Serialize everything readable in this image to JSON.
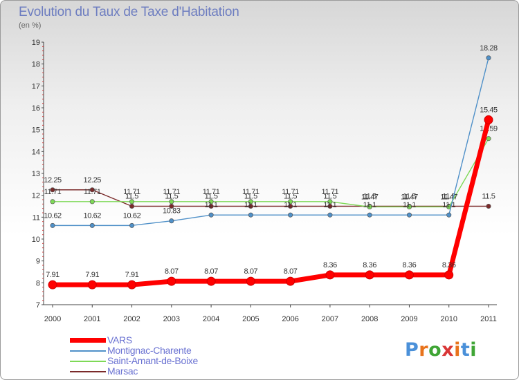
{
  "title": "Evolution du Taux de Taxe d'Habitation",
  "subtitle": "(en %)",
  "logo": {
    "text": "Proxiti",
    "letter_colors": [
      "#4a90d9",
      "#e8731c",
      "#3fa535",
      "#d93636",
      "#e8731c",
      "#4a90d9",
      "#3fa535"
    ]
  },
  "chart_data": {
    "type": "line",
    "x": [
      "2000",
      "2001",
      "2002",
      "2003",
      "2004",
      "2005",
      "2006",
      "2007",
      "2008",
      "2009",
      "2010",
      "2011"
    ],
    "ylim": [
      7,
      19
    ],
    "yticks": [
      "7",
      "8",
      "9",
      "10",
      "11",
      "12",
      "13",
      "14",
      "15",
      "16",
      "17",
      "18",
      "19"
    ],
    "grid": false,
    "legend_position": "bottom-left",
    "series": [
      {
        "name": "Marsac",
        "color": "#7b2b2b",
        "values": [
          12.25,
          12.25,
          11.5,
          11.5,
          11.5,
          11.5,
          11.5,
          11.5,
          11.5,
          11.5,
          11.5,
          11.5
        ],
        "labels": [
          "12.25",
          "12.25",
          "11.5",
          "11.5",
          "11.5",
          "11.5",
          "11.5",
          "11.5",
          "11.5",
          "11.5",
          "11.5",
          "11.5"
        ]
      },
      {
        "name": "Saint-Amant-de-Boixe",
        "color": "#7ed957",
        "values": [
          11.71,
          11.71,
          11.71,
          11.71,
          11.71,
          11.71,
          11.71,
          11.71,
          11.47,
          11.47,
          11.47,
          14.59
        ],
        "labels": [
          "11.71",
          "11.71",
          "11.71",
          "11.71",
          "11.71",
          "11.71",
          "11.71",
          "11.71",
          "11.47",
          "11.47",
          "11.47",
          "14.59"
        ]
      },
      {
        "name": "Montignac-Charente",
        "color": "#4f90c8",
        "values": [
          10.62,
          10.62,
          10.62,
          10.83,
          11.1,
          11.1,
          11.1,
          11.1,
          11.1,
          11.1,
          11.1,
          18.28
        ],
        "labels": [
          "10.62",
          "10.62",
          "10.62",
          "10.83",
          "11.1",
          "11.1",
          "11.1",
          "11.1",
          "11.1",
          "11.1",
          "11.1",
          "18.28"
        ]
      },
      {
        "name": "VARS",
        "color": "#ff0000",
        "values": [
          7.91,
          7.91,
          7.91,
          8.07,
          8.07,
          8.07,
          8.07,
          8.36,
          8.36,
          8.36,
          8.36,
          15.45
        ],
        "labels": [
          "7.91",
          "7.91",
          "7.91",
          "8.07",
          "8.07",
          "8.07",
          "8.07",
          "8.36",
          "8.36",
          "8.36",
          "8.36",
          "15.45"
        ]
      }
    ],
    "legend_order": [
      "VARS",
      "Montignac-Charente",
      "Saint-Amant-de-Boixe",
      "Marsac"
    ]
  }
}
